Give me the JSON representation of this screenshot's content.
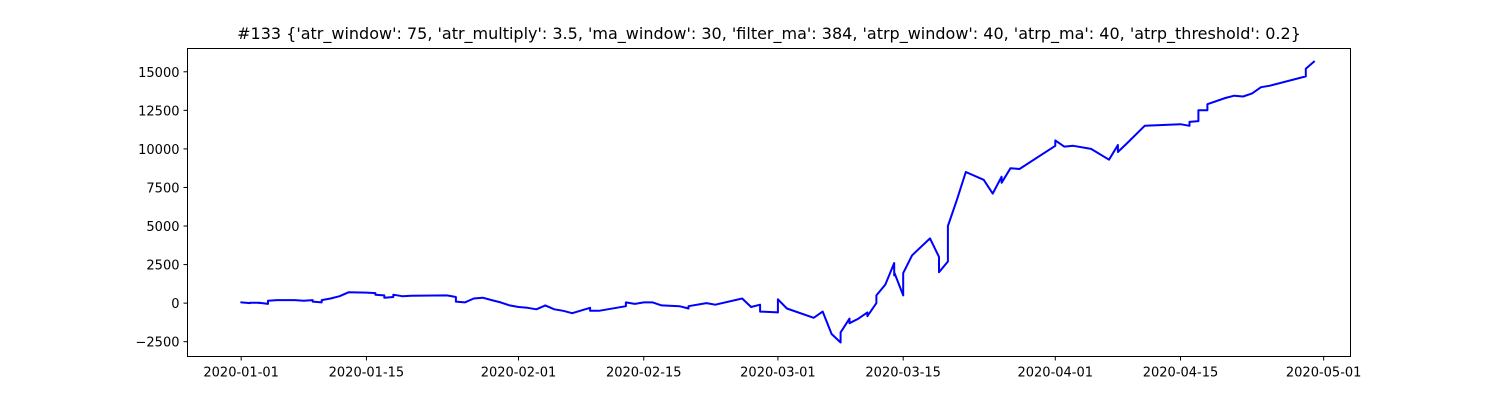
{
  "chart_data": {
    "type": "line",
    "title": "#133 {'atr_window': 75, 'atr_multiply': 3.5, 'ma_window': 30, 'filter_ma': 384, 'atrp_window': 40, 'atrp_ma': 40, 'atrp_threshold': 0.2}",
    "xlabel": "",
    "ylabel": "",
    "grid": false,
    "xlim": [
      "2019-12-26",
      "2020-05-04"
    ],
    "ylim": [
      -3460,
      16510
    ],
    "x_ticks": [
      "2020-01-01",
      "2020-01-15",
      "2020-02-01",
      "2020-02-15",
      "2020-03-01",
      "2020-03-15",
      "2020-04-01",
      "2020-04-15",
      "2020-05-01"
    ],
    "y_ticks": [
      -2500,
      0,
      2500,
      5000,
      7500,
      10000,
      12500,
      15000
    ],
    "y_tick_labels": [
      "−2500",
      "0",
      "2500",
      "5000",
      "7500",
      "10000",
      "12500",
      "15000"
    ],
    "series": [
      {
        "color": "#0000ff",
        "points": [
          [
            "2020-01-01",
            0
          ],
          [
            "2020-01-01",
            50
          ],
          [
            "2020-01-02",
            0
          ],
          [
            "2020-01-02",
            30
          ],
          [
            "2020-01-03",
            20
          ],
          [
            "2020-01-03",
            0
          ],
          [
            "2020-01-03",
            30
          ],
          [
            "2020-01-04",
            -50
          ],
          [
            "2020-01-04",
            150
          ],
          [
            "2020-01-05",
            200
          ],
          [
            "2020-01-06",
            200
          ],
          [
            "2020-01-07",
            200
          ],
          [
            "2020-01-08",
            150
          ],
          [
            "2020-01-09",
            200
          ],
          [
            "2020-01-09",
            100
          ],
          [
            "2020-01-10",
            50
          ],
          [
            "2020-01-10",
            200
          ],
          [
            "2020-01-11",
            300
          ],
          [
            "2020-01-12",
            450
          ],
          [
            "2020-01-13",
            700
          ],
          [
            "2020-01-15",
            680
          ],
          [
            "2020-01-16",
            650
          ],
          [
            "2020-01-16",
            550
          ],
          [
            "2020-01-17",
            500
          ],
          [
            "2020-01-17",
            350
          ],
          [
            "2020-01-18",
            400
          ],
          [
            "2020-01-18",
            550
          ],
          [
            "2020-01-19",
            450
          ],
          [
            "2020-01-20",
            480
          ],
          [
            "2020-01-24",
            500
          ],
          [
            "2020-01-25",
            400
          ],
          [
            "2020-01-25",
            100
          ],
          [
            "2020-01-26",
            50
          ],
          [
            "2020-01-27",
            300
          ],
          [
            "2020-01-28",
            350
          ],
          [
            "2020-01-29",
            200
          ],
          [
            "2020-01-30",
            50
          ],
          [
            "2020-01-31",
            -150
          ],
          [
            "2020-02-01",
            -250
          ],
          [
            "2020-02-02",
            -300
          ],
          [
            "2020-02-03",
            -400
          ],
          [
            "2020-02-04",
            -150
          ],
          [
            "2020-02-05",
            -400
          ],
          [
            "2020-02-06",
            -500
          ],
          [
            "2020-02-07",
            -650
          ],
          [
            "2020-02-09",
            -300
          ],
          [
            "2020-02-09",
            -500
          ],
          [
            "2020-02-10",
            -500
          ],
          [
            "2020-02-13",
            -200
          ],
          [
            "2020-02-13",
            50
          ],
          [
            "2020-02-14",
            -50
          ],
          [
            "2020-02-15",
            50
          ],
          [
            "2020-02-16",
            50
          ],
          [
            "2020-02-17",
            -150
          ],
          [
            "2020-02-19",
            -200
          ],
          [
            "2020-02-20",
            -350
          ],
          [
            "2020-02-20",
            -200
          ],
          [
            "2020-02-22",
            0
          ],
          [
            "2020-02-23",
            -100
          ],
          [
            "2020-02-26",
            300
          ],
          [
            "2020-02-27",
            -250
          ],
          [
            "2020-02-28",
            -100
          ],
          [
            "2020-02-28",
            -550
          ],
          [
            "2020-03-01",
            -600
          ],
          [
            "2020-03-01",
            250
          ],
          [
            "2020-03-02",
            -350
          ],
          [
            "2020-03-05",
            -950
          ],
          [
            "2020-03-06",
            -550
          ],
          [
            "2020-03-07",
            -2000
          ],
          [
            "2020-03-08",
            -2550
          ],
          [
            "2020-03-08",
            -1900
          ],
          [
            "2020-03-09",
            -1000
          ],
          [
            "2020-03-09",
            -1300
          ],
          [
            "2020-03-10",
            -1000
          ],
          [
            "2020-03-11",
            -600
          ],
          [
            "2020-03-11",
            -850
          ],
          [
            "2020-03-12",
            0
          ],
          [
            "2020-03-12",
            500
          ],
          [
            "2020-03-13",
            1200
          ],
          [
            "2020-03-14",
            2600
          ],
          [
            "2020-03-14",
            1800
          ],
          [
            "2020-03-14",
            2000
          ],
          [
            "2020-03-15",
            500
          ],
          [
            "2020-03-15",
            1950
          ],
          [
            "2020-03-16",
            3100
          ],
          [
            "2020-03-18",
            4200
          ],
          [
            "2020-03-19",
            3000
          ],
          [
            "2020-03-19",
            2000
          ],
          [
            "2020-03-20",
            2700
          ],
          [
            "2020-03-20",
            3700
          ],
          [
            "2020-03-20",
            5000
          ],
          [
            "2020-03-21",
            6700
          ],
          [
            "2020-03-22",
            8500
          ],
          [
            "2020-03-24",
            8000
          ],
          [
            "2020-03-25",
            7100
          ],
          [
            "2020-03-26",
            8200
          ],
          [
            "2020-03-26",
            7800
          ],
          [
            "2020-03-27",
            8750
          ],
          [
            "2020-03-28",
            8700
          ],
          [
            "2020-04-01",
            10200
          ],
          [
            "2020-04-01",
            10550
          ],
          [
            "2020-04-02",
            10150
          ],
          [
            "2020-04-03",
            10200
          ],
          [
            "2020-04-05",
            10000
          ],
          [
            "2020-04-07",
            9300
          ],
          [
            "2020-04-08",
            10250
          ],
          [
            "2020-04-08",
            9800
          ],
          [
            "2020-04-09",
            10350
          ],
          [
            "2020-04-11",
            11500
          ],
          [
            "2020-04-15",
            11600
          ],
          [
            "2020-04-16",
            11500
          ],
          [
            "2020-04-16",
            11750
          ],
          [
            "2020-04-17",
            11800
          ],
          [
            "2020-04-17",
            12500
          ],
          [
            "2020-04-18",
            12500
          ],
          [
            "2020-04-18",
            12900
          ],
          [
            "2020-04-20",
            13300
          ],
          [
            "2020-04-21",
            13450
          ],
          [
            "2020-04-22",
            13400
          ],
          [
            "2020-04-23",
            13600
          ],
          [
            "2020-04-24",
            14000
          ],
          [
            "2020-04-25",
            14100
          ],
          [
            "2020-04-29",
            14700
          ],
          [
            "2020-04-29",
            15200
          ],
          [
            "2020-04-30",
            15700
          ]
        ]
      }
    ]
  }
}
